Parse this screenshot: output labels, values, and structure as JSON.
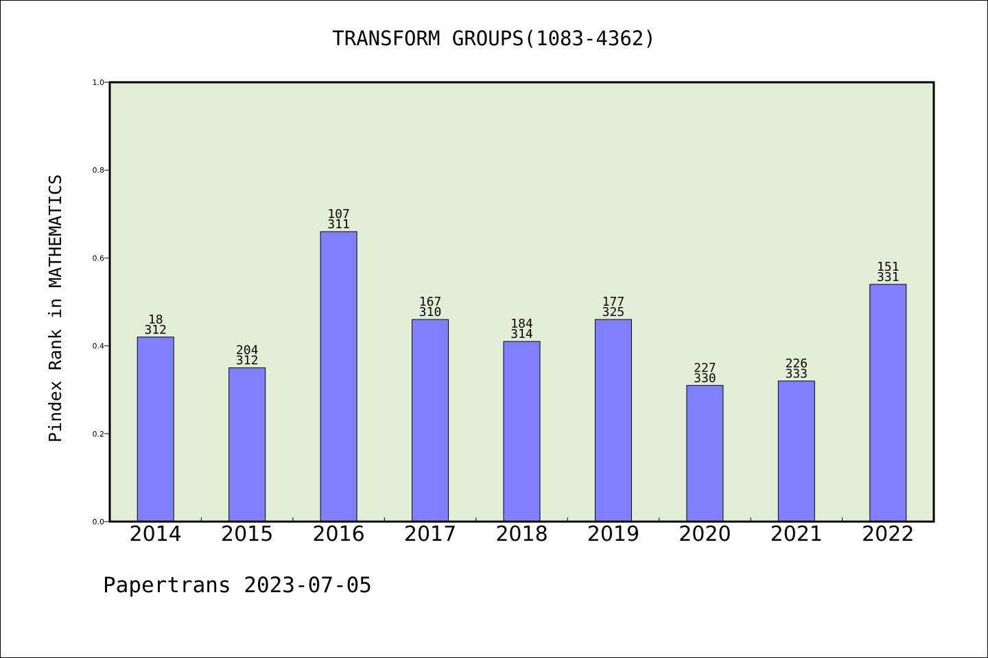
{
  "chart_data": {
    "type": "bar",
    "title": "TRANSFORM GROUPS(1083-4362)",
    "ylabel": "Pindex Rank in MATHEMATICS",
    "xlabel": "",
    "ylim": [
      0,
      1.0
    ],
    "yticks": [
      "0.0",
      "0.2",
      "0.4",
      "0.6",
      "0.8",
      "1.0"
    ],
    "ytick_values": [
      0,
      0.2,
      0.4,
      0.6,
      0.8,
      1.0
    ],
    "categories": [
      "2014",
      "2015",
      "2016",
      "2017",
      "2018",
      "2019",
      "2020",
      "2021",
      "2022"
    ],
    "values": [
      0.42,
      0.35,
      0.66,
      0.46,
      0.41,
      0.46,
      0.31,
      0.32,
      0.54
    ],
    "labels_top": [
      "18",
      "204",
      "107",
      "167",
      "184",
      "177",
      "227",
      "226",
      "151"
    ],
    "labels_bottom": [
      "312",
      "312",
      "311",
      "310",
      "314",
      "325",
      "330",
      "333",
      "331"
    ],
    "grid": false,
    "colors": {
      "bar": "#8080ff",
      "plot_background": "#e2efd6",
      "axis": "#000000"
    }
  },
  "footer": {
    "credit": "Papertrans 2023-07-05"
  }
}
